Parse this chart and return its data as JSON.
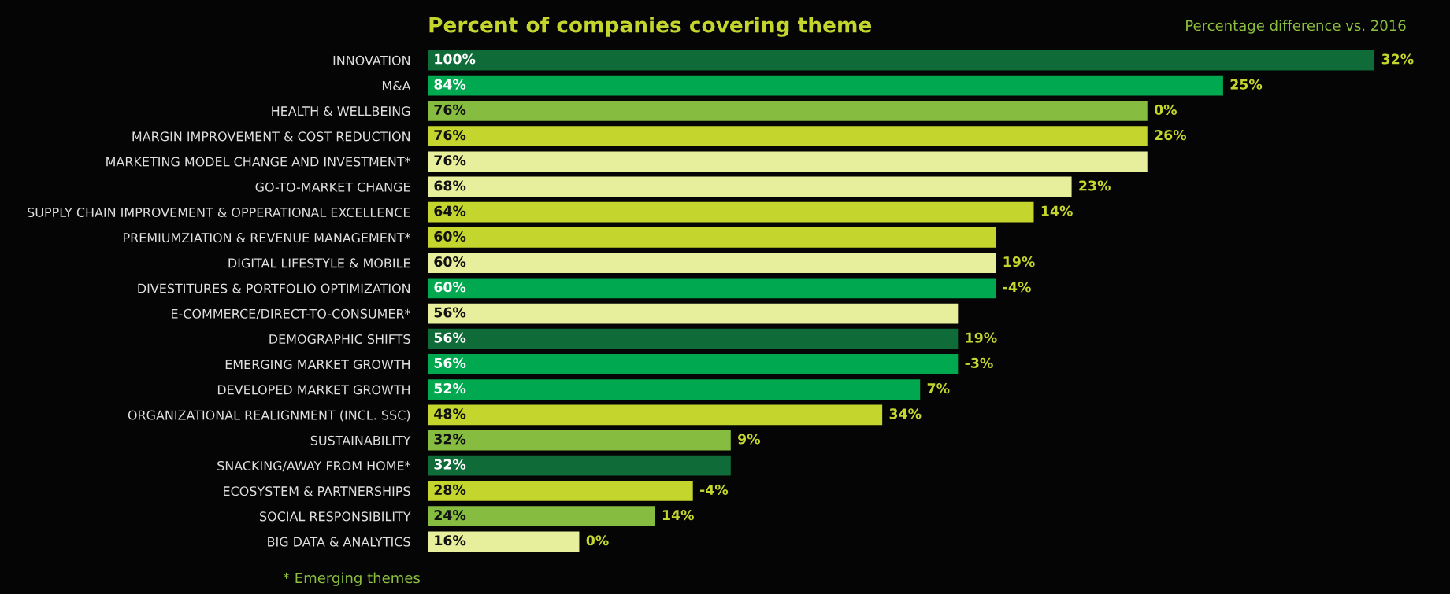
{
  "chart_data": {
    "type": "bar",
    "orientation": "horizontal",
    "title": "Percent of companies covering theme",
    "tick_labels": "y",
    "xlim": [
      0,
      100
    ],
    "categories": [
      "INNOVATION",
      "M&A",
      "HEALTH & WELLBEING",
      "MARGIN IMPROVEMENT & COST REDUCTION",
      "MARKETING MODEL CHANGE AND INVESTMENT*",
      "GO-TO-MARKET CHANGE",
      "SUPPLY CHAIN IMPROVEMENT & OPPERATIONAL EXCELLENCE",
      "PREMIUMZIATION & REVENUE MANAGEMENT*",
      "DIGITAL LIFESTYLE & MOBILE",
      "DIVESTITURES & PORTFOLIO OPTIMIZATION",
      "E-COMMERCE/DIRECT-TO-CONSUMER*",
      "DEMOGRAPHIC SHIFTS",
      "EMERGING MARKET GROWTH",
      "DEVELOPED MARKET GROWTH",
      "ORGANIZATIONAL REALIGNMENT (INCL. SSC)",
      "SUSTAINABILITY",
      "SNACKING/AWAY FROM HOME*",
      "ECOSYSTEM & PARTNERSHIPS",
      "SOCIAL RESPONSIBILITY",
      "BIG DATA & ANALYTICS"
    ],
    "values": [
      100,
      84,
      76,
      76,
      76,
      68,
      64,
      60,
      60,
      60,
      56,
      56,
      56,
      52,
      48,
      32,
      32,
      28,
      24,
      16
    ],
    "value_labels": [
      "100%",
      "84%",
      "76%",
      "76%",
      "76%",
      "68%",
      "64%",
      "60%",
      "60%",
      "60%",
      "56%",
      "56%",
      "56%",
      "52%",
      "48%",
      "32%",
      "32%",
      "28%",
      "24%",
      "16%"
    ],
    "colors": [
      "#0f6b38",
      "#00a84f",
      "#86bc40",
      "#c4d62e",
      "#e8ef9c",
      "#e8ef9c",
      "#c4d62e",
      "#c4d62e",
      "#e8ef9c",
      "#00a84f",
      "#e8ef9c",
      "#0f6b38",
      "#00a84f",
      "#00a84f",
      "#c4d62e",
      "#86bc40",
      "#0f6b38",
      "#c4d62e",
      "#86bc40",
      "#e8ef9c"
    ],
    "annotations": [
      {
        "text": "32%",
        "x": 100,
        "y": "INNOVATION"
      },
      {
        "text": "25%",
        "x": 84,
        "y": "M&A"
      },
      {
        "text": "0%",
        "x": 76,
        "y": "HEALTH & WELLBEING"
      },
      {
        "text": "26%",
        "x": 76,
        "y": "MARGIN IMPROVEMENT & COST REDUCTION"
      },
      {
        "text": "23%",
        "x": 68,
        "y": "GO-TO-MARKET CHANGE"
      },
      {
        "text": "14%",
        "x": 64,
        "y": "SUPPLY CHAIN IMPROVEMENT & OPPERATIONAL EXCELLENCE"
      },
      {
        "text": "19%",
        "x": 60,
        "y": "DIGITAL LIFESTYLE & MOBILE"
      },
      {
        "text": "-4%",
        "x": 60,
        "y": "DIVESTITURES & PORTFOLIO OPTIMIZATION"
      },
      {
        "text": "19%",
        "x": 56,
        "y": "DEMOGRAPHIC SHIFTS"
      },
      {
        "text": "-3%",
        "x": 56,
        "y": "EMERGING MARKET GROWTH"
      },
      {
        "text": "7%",
        "x": 52,
        "y": "DEVELOPED MARKET GROWTH"
      },
      {
        "text": "34%",
        "x": 48,
        "y": "ORGANIZATIONAL REALIGNMENT (INCL. SSC)"
      },
      {
        "text": "9%",
        "x": 32,
        "y": "SUSTAINABILITY"
      },
      {
        "text": "-4%",
        "x": 28,
        "y": "ECOSYSTEM & PARTNERSHIPS"
      },
      {
        "text": "14%",
        "x": 24,
        "y": "SOCIAL RESPONSIBILITY"
      },
      {
        "text": "0%",
        "x": 16,
        "y": "BIG DATA & ANALYTICS"
      },
      "Percentage difference vs. 2016",
      "* Emerging themes"
    ]
  }
}
